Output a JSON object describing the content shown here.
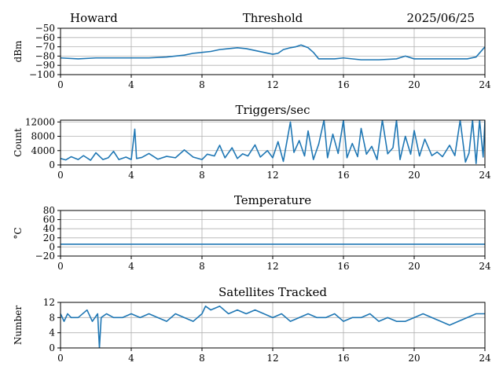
{
  "header": {
    "station": "Howard",
    "date": "2025/06/25"
  },
  "style": {
    "line_color": "#1f77b4",
    "grid_color": "#b0b0b0",
    "axis_color": "#000000"
  },
  "chart_data": [
    {
      "type": "line",
      "title": "Threshold",
      "xlabel": "",
      "ylabel": "dBm",
      "xlim": [
        0,
        24
      ],
      "ylim": [
        -100,
        -50
      ],
      "xticks": [
        0,
        4,
        8,
        12,
        16,
        20,
        24
      ],
      "xtick_labels": [
        "0",
        "4",
        "8",
        "12",
        "16",
        "20",
        "24"
      ],
      "yticks": [
        -100,
        -90,
        -80,
        -70,
        -60,
        -50
      ],
      "ytick_labels": [
        "−100",
        "−90",
        "−80",
        "−70",
        "−60",
        "−50"
      ],
      "grid": true,
      "series": [
        {
          "x": [
            0,
            1,
            2,
            3,
            4,
            5,
            6,
            7,
            7.5,
            8,
            8.5,
            9,
            9.5,
            10,
            10.5,
            11,
            11.5,
            12,
            12.3,
            12.6,
            13,
            13.3,
            13.6,
            14,
            14.3,
            14.6,
            15,
            15.5,
            16,
            17,
            18,
            19,
            19.5,
            20,
            21,
            22,
            23,
            23.5,
            24
          ],
          "y": [
            -82,
            -83,
            -82,
            -82,
            -82,
            -82,
            -81,
            -79,
            -77,
            -76,
            -75,
            -73,
            -72,
            -71,
            -72,
            -74,
            -76,
            -78,
            -77,
            -73,
            -71,
            -70,
            -68,
            -71,
            -76,
            -83,
            -83,
            -83,
            -82,
            -84,
            -84,
            -83,
            -80,
            -83,
            -83,
            -83,
            -83,
            -81,
            -70
          ]
        }
      ]
    },
    {
      "type": "line",
      "title": "Triggers/sec",
      "xlabel": "",
      "ylabel": "Count",
      "xlim": [
        0,
        24
      ],
      "ylim": [
        0,
        12500
      ],
      "xticks": [
        0,
        4,
        8,
        12,
        16,
        20,
        24
      ],
      "xtick_labels": [
        "0",
        "4",
        "8",
        "12",
        "16",
        "20",
        "24"
      ],
      "yticks": [
        0,
        4000,
        8000,
        12000
      ],
      "ytick_labels": [
        "0",
        "4000",
        "8000",
        "12000"
      ],
      "grid": true,
      "series": [
        {
          "x": [
            0,
            0.3,
            0.6,
            1,
            1.3,
            1.7,
            2,
            2.4,
            2.7,
            3,
            3.3,
            3.7,
            4,
            4.2,
            4.3,
            4.6,
            5,
            5.5,
            6,
            6.5,
            7,
            7.5,
            8,
            8.3,
            8.7,
            9,
            9.3,
            9.7,
            10,
            10.3,
            10.6,
            11,
            11.3,
            11.7,
            12,
            12.3,
            12.6,
            13,
            13.2,
            13.5,
            13.8,
            14,
            14.3,
            14.6,
            14.9,
            15.1,
            15.4,
            15.7,
            16,
            16.2,
            16.5,
            16.8,
            17,
            17.3,
            17.6,
            17.9,
            18.2,
            18.5,
            18.8,
            19,
            19.2,
            19.5,
            19.8,
            20,
            20.3,
            20.6,
            21,
            21.3,
            21.6,
            22,
            22.3,
            22.6,
            22.9,
            23.1,
            23.3,
            23.5,
            23.7,
            23.9,
            24
          ],
          "y": [
            1800,
            1400,
            2300,
            1500,
            2600,
            1300,
            3400,
            1500,
            2000,
            3800,
            1500,
            2200,
            1500,
            10000,
            1800,
            2100,
            3200,
            1600,
            2400,
            2000,
            4200,
            2200,
            1500,
            3000,
            2500,
            5500,
            2000,
            4800,
            1800,
            3100,
            2500,
            5600,
            2200,
            4000,
            2000,
            6500,
            1000,
            12000,
            3500,
            6800,
            2500,
            9500,
            1500,
            5800,
            12500,
            2000,
            8600,
            3200,
            12500,
            2000,
            6000,
            2300,
            10200,
            3000,
            5200,
            1500,
            12500,
            3100,
            4800,
            12500,
            1500,
            8000,
            3000,
            9600,
            2500,
            7200,
            2600,
            3600,
            2300,
            5500,
            2600,
            12500,
            800,
            3300,
            12500,
            400,
            12500,
            2200,
            12500
          ]
        }
      ]
    },
    {
      "type": "line",
      "title": "Temperature",
      "xlabel": "",
      "ylabel": "°C",
      "xlim": [
        0,
        24
      ],
      "ylim": [
        -20,
        80
      ],
      "xticks": [
        0,
        4,
        8,
        12,
        16,
        20,
        24
      ],
      "xtick_labels": [
        "0",
        "4",
        "8",
        "12",
        "16",
        "20",
        "24"
      ],
      "yticks": [
        -20,
        0,
        20,
        40,
        60,
        80
      ],
      "ytick_labels": [
        "−20",
        "0",
        "20",
        "40",
        "60",
        "80"
      ],
      "grid": true,
      "series": [
        {
          "x": [
            0,
            24
          ],
          "y": [
            6,
            6
          ]
        }
      ]
    },
    {
      "type": "line",
      "title": "Satellites Tracked",
      "xlabel": "",
      "ylabel": "Number",
      "xlim": [
        0,
        24
      ],
      "ylim": [
        0,
        12
      ],
      "xticks": [
        0,
        4,
        8,
        12,
        16,
        20,
        24
      ],
      "xtick_labels": [
        "0",
        "4",
        "8",
        "12",
        "16",
        "20",
        "24"
      ],
      "yticks": [
        0,
        4,
        8,
        12
      ],
      "ytick_labels": [
        "0",
        "4",
        "8",
        "12"
      ],
      "grid": true,
      "series": [
        {
          "x": [
            0,
            0.2,
            0.4,
            0.6,
            1,
            1.5,
            1.8,
            2.1,
            2.2,
            2.3,
            2.6,
            3,
            3.5,
            4,
            4.5,
            5,
            5.5,
            6,
            6.5,
            7,
            7.5,
            8,
            8.2,
            8.5,
            9,
            9.5,
            10,
            10.5,
            11,
            11.5,
            12,
            12.5,
            13,
            13.5,
            14,
            14.5,
            15,
            15.5,
            16,
            16.5,
            17,
            17.5,
            18,
            18.5,
            19,
            19.5,
            20,
            20.5,
            21,
            21.5,
            22,
            22.5,
            23,
            23.5,
            24
          ],
          "y": [
            9,
            7,
            9,
            8,
            8,
            10,
            7,
            9,
            0,
            8,
            9,
            8,
            8,
            9,
            8,
            9,
            8,
            7,
            9,
            8,
            7,
            9,
            11,
            10,
            11,
            9,
            10,
            9,
            10,
            9,
            8,
            9,
            7,
            8,
            9,
            8,
            8,
            9,
            7,
            8,
            8,
            9,
            7,
            8,
            7,
            7,
            8,
            9,
            8,
            7,
            6,
            7,
            8,
            9,
            9
          ]
        }
      ]
    }
  ]
}
